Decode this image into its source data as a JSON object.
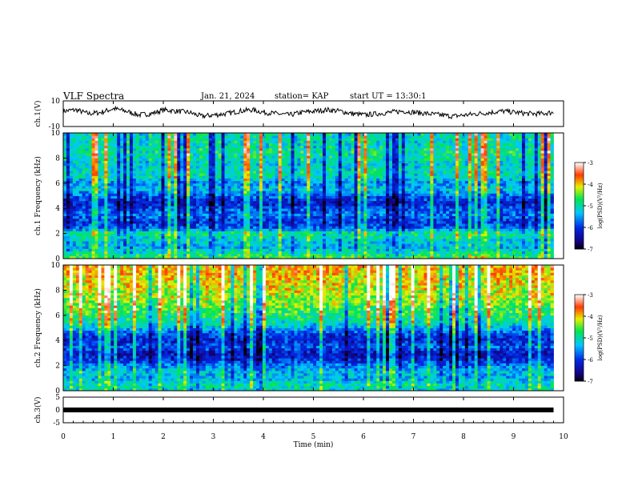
{
  "header": {
    "title": "VLF Spectra",
    "date": "Jan. 21, 2024",
    "station": "station= KAP",
    "start": "start UT = 13:30:1"
  },
  "chart_data": [
    {
      "type": "line",
      "panel": "ch1-waveform",
      "ylabel": "ch.1(V)",
      "ylim": [
        -10,
        10
      ],
      "y_ticks": [
        "10",
        "-10"
      ],
      "xlim": [
        0,
        10
      ],
      "x_end": 9.8,
      "series": [
        {
          "values": [
            2,
            3,
            0,
            1,
            4,
            2,
            -1,
            0,
            3,
            2,
            1,
            -2,
            -1,
            0,
            2,
            3,
            1,
            0,
            -1,
            1,
            2,
            3,
            2,
            0,
            -1,
            0,
            1,
            2,
            1,
            0,
            -1,
            -2,
            -1,
            0,
            1,
            2,
            1,
            0,
            0,
            1
          ]
        }
      ]
    },
    {
      "type": "heatmap",
      "panel": "ch1-spectrogram",
      "ylabel": "ch.1 Frequency (kHz)",
      "ylim": [
        0,
        10
      ],
      "y_ticks": [
        "0",
        "2",
        "4",
        "6",
        "8",
        "10"
      ],
      "xlim": [
        0,
        10
      ],
      "x_end": 9.8,
      "colorbar": {
        "label": "log(PSD)(V²/Hz)",
        "range": [
          -7,
          -3
        ],
        "ticks": [
          "-3",
          "-4",
          "-5",
          "-6",
          "-7"
        ]
      },
      "band_profile": {
        "freq_khz": [
          0,
          0.5,
          1,
          1.5,
          2,
          2.5,
          3,
          3.5,
          4,
          4.5,
          5,
          5.5,
          6,
          6.5,
          7,
          7.5,
          8,
          8.5,
          9,
          9.5,
          10
        ],
        "log_psd": [
          -4.5,
          -5.0,
          -5.4,
          -5.2,
          -4.8,
          -5.8,
          -6.0,
          -5.7,
          -5.9,
          -6.2,
          -5.8,
          -5.3,
          -5.6,
          -5.1,
          -5.0,
          -5.2,
          -5.0,
          -4.9,
          -5.1,
          -5.0,
          -5.1
        ]
      }
    },
    {
      "type": "heatmap",
      "panel": "ch2-spectrogram",
      "ylabel": "ch.2 Frequency (kHz)",
      "ylim": [
        0,
        10
      ],
      "y_ticks": [
        "0",
        "2",
        "4",
        "6",
        "8",
        "10"
      ],
      "xlim": [
        0,
        10
      ],
      "x_end": 9.8,
      "colorbar": {
        "label": "log(PSD)(V²/Hz)",
        "range": [
          -7,
          -3
        ],
        "ticks": [
          "-3",
          "-4",
          "-5",
          "-6",
          "-7"
        ]
      },
      "band_profile": {
        "freq_khz": [
          0,
          0.5,
          1,
          1.5,
          2,
          2.5,
          3,
          3.5,
          4,
          4.5,
          5,
          5.5,
          6,
          6.5,
          7,
          7.5,
          8,
          8.5,
          9,
          9.5,
          10
        ],
        "log_psd": [
          -5.2,
          -5.0,
          -5.4,
          -5.3,
          -5.6,
          -6.1,
          -6.3,
          -5.8,
          -6.2,
          -5.9,
          -5.4,
          -5.0,
          -4.8,
          -4.6,
          -4.4,
          -4.3,
          -4.2,
          -4.1,
          -4.0,
          -3.9,
          -3.9
        ]
      }
    },
    {
      "type": "line",
      "panel": "ch3-waveform",
      "ylabel": "ch.3(V)",
      "ylim": [
        -5,
        5
      ],
      "y_ticks": [
        "5",
        "0",
        "-5"
      ],
      "xlim": [
        0,
        10
      ],
      "x_end": 9.8,
      "x_ticks": [
        "0",
        "1",
        "2",
        "3",
        "4",
        "5",
        "6",
        "7",
        "8",
        "9",
        "10"
      ],
      "xlabel": "Time (min)",
      "series": [
        {
          "values": [
            0,
            0
          ]
        }
      ]
    }
  ]
}
